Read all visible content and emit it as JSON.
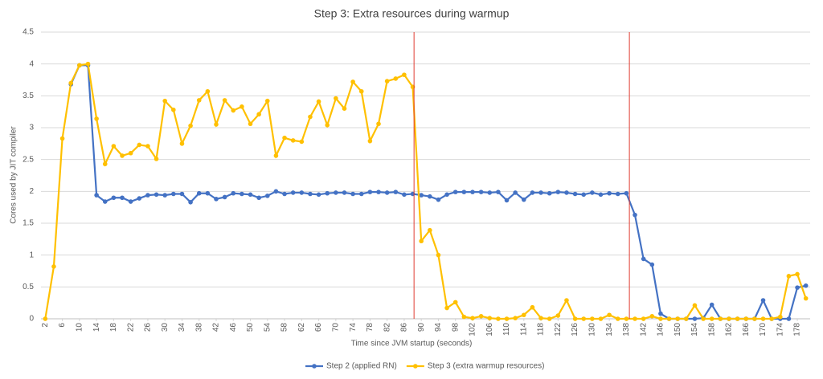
{
  "chart_data": {
    "type": "line",
    "title": "Step 3: Extra resources during warmup",
    "xlabel": "Time since JVM startup (seconds)",
    "ylabel": "Cores used by JIT compiler",
    "x": [
      2,
      4,
      6,
      8,
      10,
      12,
      14,
      16,
      18,
      20,
      22,
      24,
      26,
      28,
      30,
      32,
      34,
      36,
      38,
      40,
      42,
      44,
      46,
      48,
      50,
      52,
      54,
      56,
      58,
      60,
      62,
      64,
      66,
      68,
      70,
      72,
      74,
      76,
      78,
      80,
      82,
      84,
      86,
      88,
      90,
      92,
      94,
      96,
      98,
      100,
      102,
      104,
      106,
      108,
      110,
      112,
      114,
      116,
      118,
      120,
      122,
      124,
      126,
      128,
      130,
      132,
      134,
      136,
      138,
      140,
      142,
      144,
      146,
      148,
      150,
      152,
      154,
      156,
      158,
      160,
      162,
      164,
      166,
      168,
      170,
      172,
      174,
      176,
      178,
      180
    ],
    "series": [
      {
        "name": "Step 2 (applied RN)",
        "color": "#4472c4",
        "values": [
          null,
          null,
          null,
          3.68,
          3.98,
          3.98,
          1.94,
          1.84,
          1.9,
          1.9,
          1.84,
          1.89,
          1.94,
          1.95,
          1.94,
          1.96,
          1.96,
          1.83,
          1.97,
          1.97,
          1.88,
          1.91,
          1.97,
          1.96,
          1.95,
          1.9,
          1.93,
          2.0,
          1.96,
          1.98,
          1.98,
          1.96,
          1.95,
          1.97,
          1.98,
          1.98,
          1.96,
          1.96,
          1.99,
          1.99,
          1.98,
          1.99,
          1.95,
          1.96,
          1.94,
          1.92,
          1.87,
          1.95,
          1.99,
          1.99,
          1.99,
          1.99,
          1.98,
          1.99,
          1.86,
          1.98,
          1.87,
          1.98,
          1.98,
          1.97,
          1.99,
          1.98,
          1.96,
          1.95,
          1.98,
          1.95,
          1.97,
          1.96,
          1.97,
          1.63,
          0.94,
          0.85,
          0.08,
          0,
          0,
          0,
          0,
          0.01,
          0.22,
          0,
          0,
          0,
          0,
          0,
          0.29,
          0,
          0,
          0,
          0.49,
          0.52
        ]
      },
      {
        "name": "Step 3 (extra warmup resources)",
        "color": "#ffc000",
        "values": [
          0,
          0.82,
          2.83,
          3.7,
          3.98,
          4.0,
          3.14,
          2.43,
          2.71,
          2.56,
          2.6,
          2.73,
          2.71,
          2.51,
          3.42,
          3.28,
          2.75,
          3.03,
          3.43,
          3.57,
          3.05,
          3.43,
          3.27,
          3.33,
          3.06,
          3.21,
          3.42,
          2.56,
          2.84,
          2.8,
          2.78,
          3.17,
          3.41,
          3.04,
          3.46,
          3.3,
          3.72,
          3.57,
          2.79,
          3.06,
          3.73,
          3.77,
          3.83,
          3.64,
          1.22,
          1.39,
          1.0,
          0.17,
          0.26,
          0.03,
          0.01,
          0.04,
          0.01,
          0,
          0,
          0.01,
          0.06,
          0.18,
          0.01,
          0,
          0.05,
          0.29,
          0,
          0,
          0,
          0,
          0.06,
          0,
          0,
          0,
          0,
          0.04,
          0,
          0,
          0,
          0,
          0.21,
          0,
          0,
          0,
          0,
          0,
          0,
          0,
          0,
          0,
          0.03,
          0.67,
          0.7,
          0.32
        ]
      }
    ],
    "vlines": [
      88.3,
      138.7
    ],
    "vline_color": "#e03c31",
    "xlim": [
      1,
      181
    ],
    "xticks": [
      2,
      6,
      10,
      14,
      18,
      22,
      26,
      30,
      34,
      38,
      42,
      46,
      50,
      54,
      58,
      62,
      66,
      70,
      74,
      78,
      82,
      86,
      90,
      94,
      98,
      102,
      106,
      110,
      114,
      118,
      122,
      126,
      130,
      134,
      138,
      142,
      146,
      150,
      154,
      158,
      162,
      166,
      170,
      174,
      178
    ],
    "ylim": [
      0,
      4.5
    ],
    "yticks": [
      0,
      0.5,
      1,
      1.5,
      2,
      2.5,
      3,
      3.5,
      4,
      4.5
    ],
    "grid": true,
    "legend": "bottom"
  }
}
